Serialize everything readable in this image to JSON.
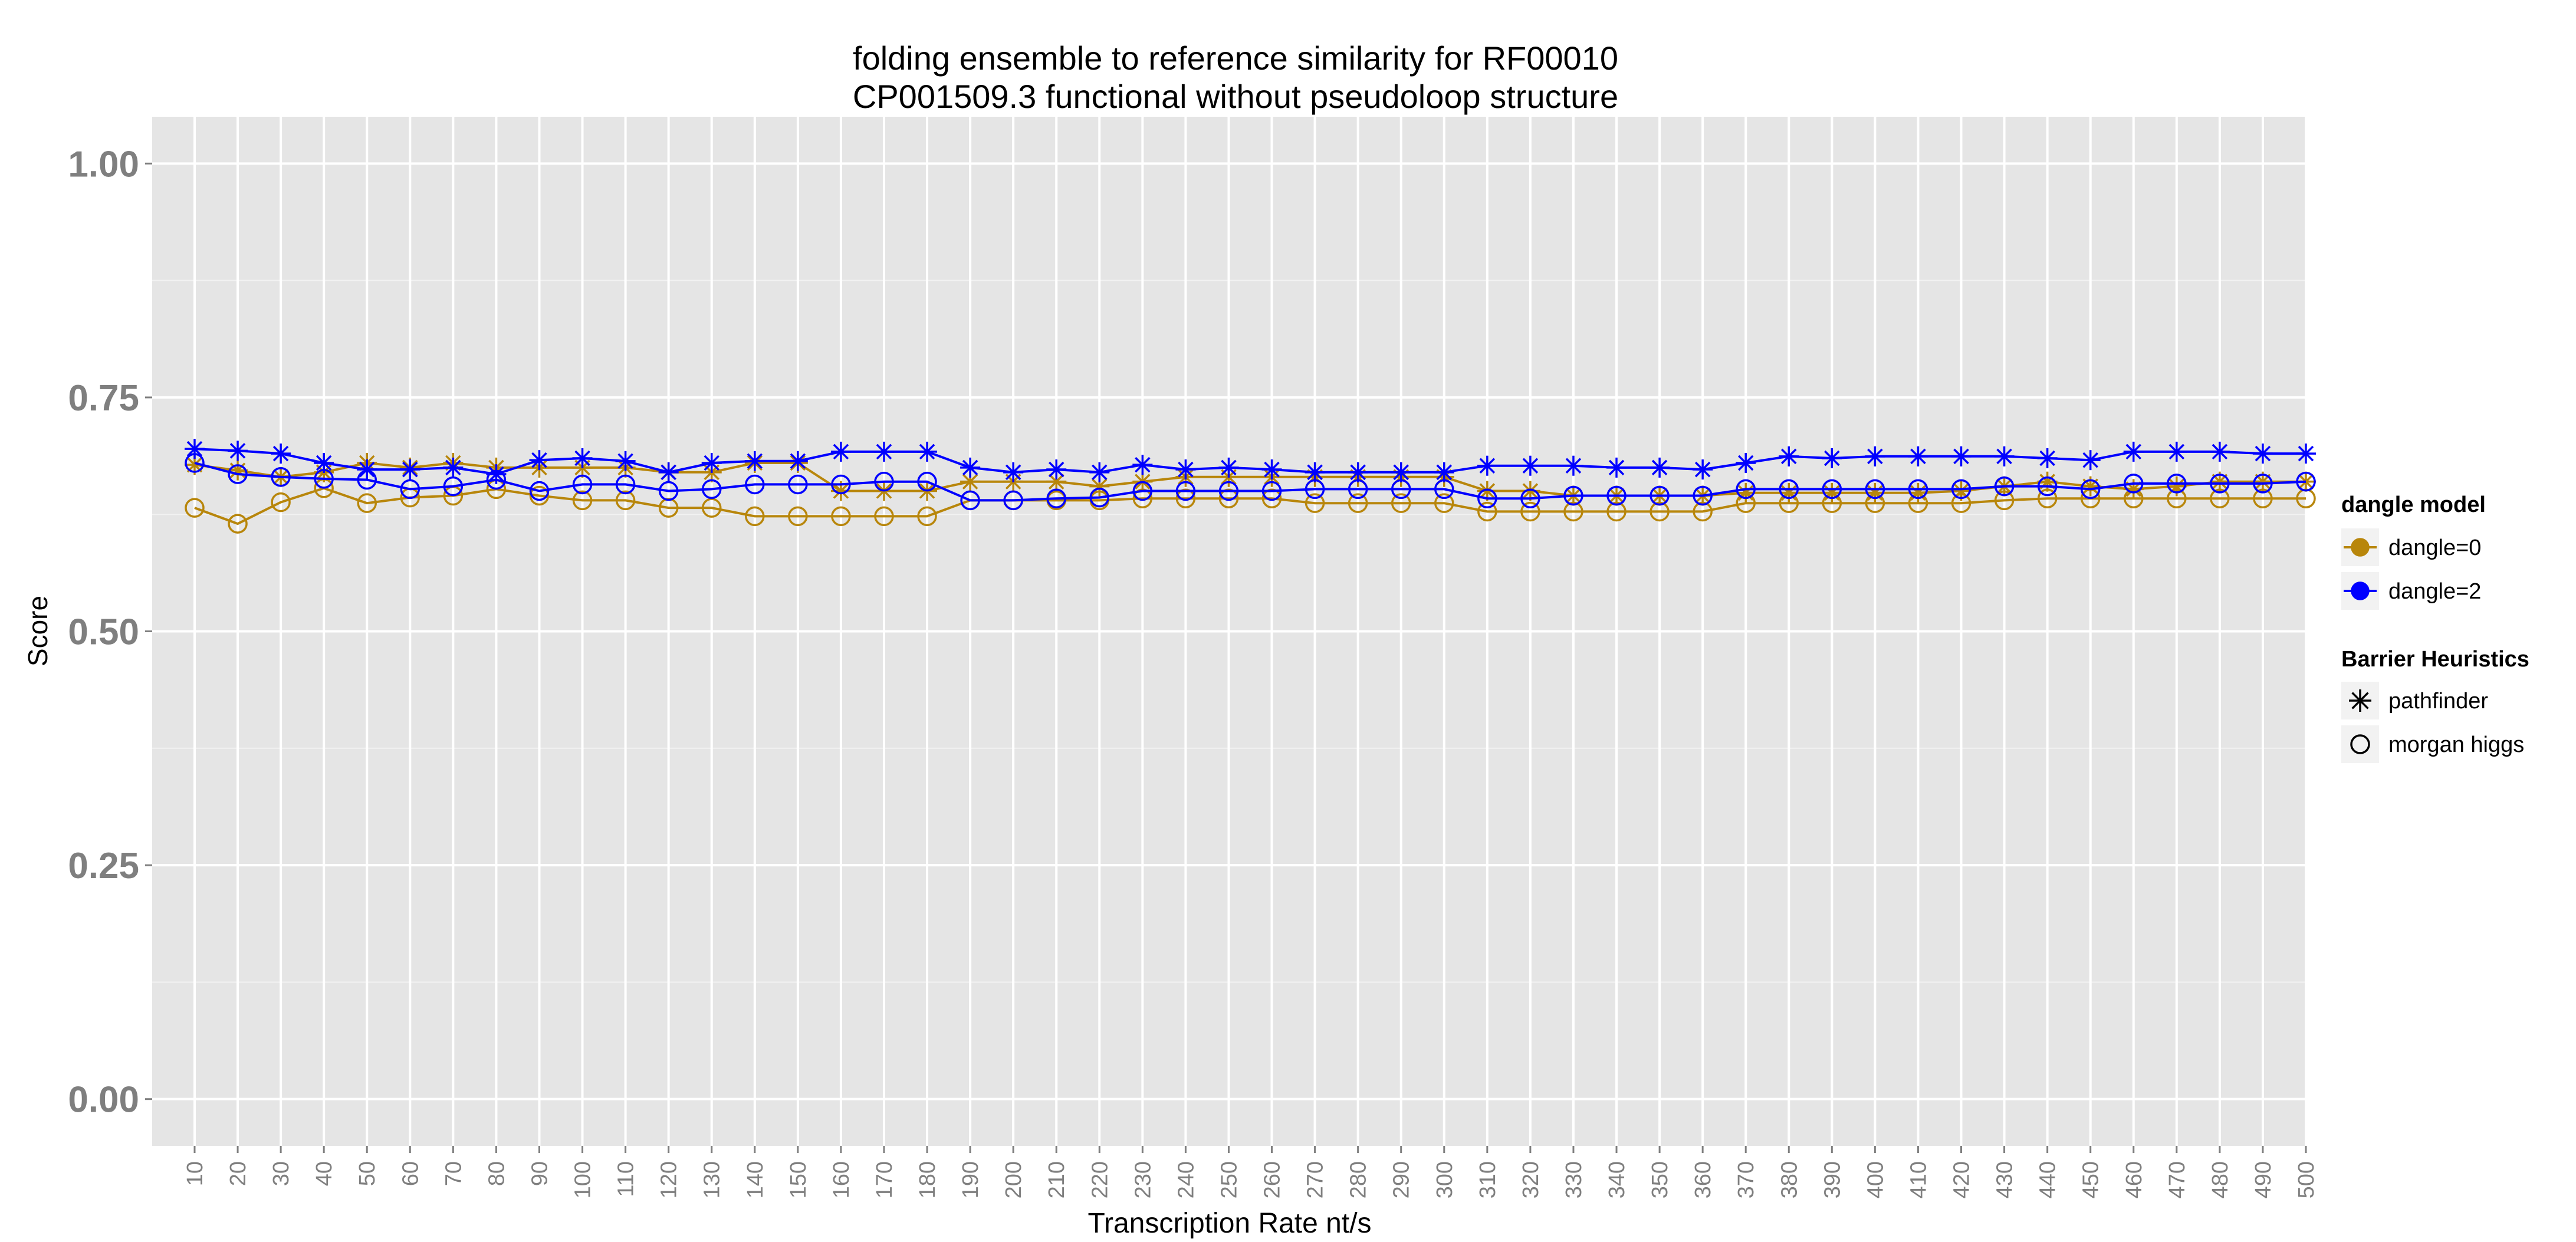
{
  "chart_data": {
    "type": "line",
    "title_line1": "folding ensemble to reference similarity for RF00010",
    "title_line2": "CP001509.3 functional without pseudoloop structure",
    "xlabel": "Transcription Rate nt/s",
    "ylabel": "Score",
    "ylim": [
      -0.05,
      1.05
    ],
    "yticks": [
      0.0,
      0.25,
      0.5,
      0.75,
      1.0
    ],
    "ytick_labels": [
      "0.00",
      "0.25",
      "0.50",
      "0.75",
      "1.00"
    ],
    "x": [
      10,
      20,
      30,
      40,
      50,
      60,
      70,
      80,
      90,
      100,
      110,
      120,
      130,
      140,
      150,
      160,
      170,
      180,
      190,
      200,
      210,
      220,
      230,
      240,
      250,
      260,
      270,
      280,
      290,
      300,
      310,
      320,
      330,
      340,
      350,
      360,
      370,
      380,
      390,
      400,
      410,
      420,
      430,
      440,
      450,
      460,
      470,
      480,
      490,
      500
    ],
    "x_labels": [
      "10",
      "20",
      "30",
      "40",
      "50",
      "60",
      "70",
      "80",
      "90",
      "100",
      "110",
      "120",
      "130",
      "140",
      "150",
      "160",
      "170",
      "180",
      "190",
      "200",
      "210",
      "220",
      "230",
      "240",
      "250",
      "260",
      "270",
      "280",
      "290",
      "300",
      "310",
      "320",
      "330",
      "340",
      "350",
      "360",
      "370",
      "380",
      "390",
      "400",
      "410",
      "420",
      "430",
      "440",
      "450",
      "460",
      "470",
      "480",
      "490",
      "500"
    ],
    "grid": true,
    "legend_placement": "right",
    "legend": {
      "color_title": "dangle model",
      "color_entries": [
        {
          "label": "dangle=0",
          "color": "#b8860b"
        },
        {
          "label": "dangle=2",
          "color": "#0000ff"
        }
      ],
      "shape_title": "Barrier Heuristics",
      "shape_entries": [
        {
          "label": "pathfinder",
          "shape": "asterisk"
        },
        {
          "label": "morgan higgs",
          "shape": "circle"
        }
      ]
    },
    "series": [
      {
        "dangle": "dangle=0",
        "heuristic": "pathfinder",
        "color": "#b8860b",
        "shape": "asterisk",
        "values": [
          0.678,
          0.672,
          0.665,
          0.67,
          0.68,
          0.675,
          0.68,
          0.675,
          0.675,
          0.675,
          0.675,
          0.67,
          0.67,
          0.68,
          0.68,
          0.65,
          0.65,
          0.65,
          0.66,
          0.66,
          0.66,
          0.655,
          0.66,
          0.665,
          0.665,
          0.665,
          0.665,
          0.665,
          0.665,
          0.665,
          0.65,
          0.65,
          0.645,
          0.645,
          0.645,
          0.645,
          0.648,
          0.648,
          0.648,
          0.648,
          0.648,
          0.65,
          0.655,
          0.66,
          0.655,
          0.652,
          0.655,
          0.66,
          0.66,
          0.66
        ]
      },
      {
        "dangle": "dangle=0",
        "heuristic": "morgan higgs",
        "color": "#b8860b",
        "shape": "circle",
        "values": [
          0.632,
          0.615,
          0.638,
          0.653,
          0.637,
          0.643,
          0.645,
          0.652,
          0.645,
          0.64,
          0.64,
          0.632,
          0.632,
          0.623,
          0.623,
          0.623,
          0.623,
          0.623,
          0.64,
          0.64,
          0.64,
          0.64,
          0.642,
          0.642,
          0.642,
          0.642,
          0.637,
          0.637,
          0.637,
          0.637,
          0.628,
          0.628,
          0.628,
          0.628,
          0.628,
          0.628,
          0.637,
          0.637,
          0.637,
          0.637,
          0.637,
          0.637,
          0.64,
          0.642,
          0.642,
          0.642,
          0.642,
          0.642,
          0.642,
          0.642
        ]
      },
      {
        "dangle": "dangle=2",
        "heuristic": "pathfinder",
        "color": "#0000ff",
        "shape": "asterisk",
        "values": [
          0.695,
          0.693,
          0.69,
          0.68,
          0.673,
          0.673,
          0.675,
          0.668,
          0.683,
          0.685,
          0.682,
          0.67,
          0.68,
          0.682,
          0.682,
          0.692,
          0.692,
          0.692,
          0.675,
          0.67,
          0.673,
          0.67,
          0.678,
          0.673,
          0.675,
          0.673,
          0.67,
          0.67,
          0.67,
          0.67,
          0.677,
          0.677,
          0.677,
          0.675,
          0.675,
          0.673,
          0.68,
          0.687,
          0.685,
          0.687,
          0.687,
          0.687,
          0.687,
          0.685,
          0.683,
          0.692,
          0.692,
          0.692,
          0.69,
          0.69
        ]
      },
      {
        "dangle": "dangle=2",
        "heuristic": "morgan higgs",
        "color": "#0000ff",
        "shape": "circle",
        "values": [
          0.68,
          0.668,
          0.665,
          0.663,
          0.662,
          0.652,
          0.655,
          0.662,
          0.65,
          0.657,
          0.657,
          0.65,
          0.652,
          0.657,
          0.657,
          0.657,
          0.66,
          0.66,
          0.64,
          0.64,
          0.642,
          0.643,
          0.65,
          0.65,
          0.65,
          0.65,
          0.652,
          0.652,
          0.652,
          0.652,
          0.642,
          0.642,
          0.645,
          0.645,
          0.645,
          0.645,
          0.652,
          0.652,
          0.652,
          0.652,
          0.652,
          0.652,
          0.655,
          0.655,
          0.652,
          0.658,
          0.658,
          0.658,
          0.658,
          0.66
        ]
      }
    ]
  }
}
